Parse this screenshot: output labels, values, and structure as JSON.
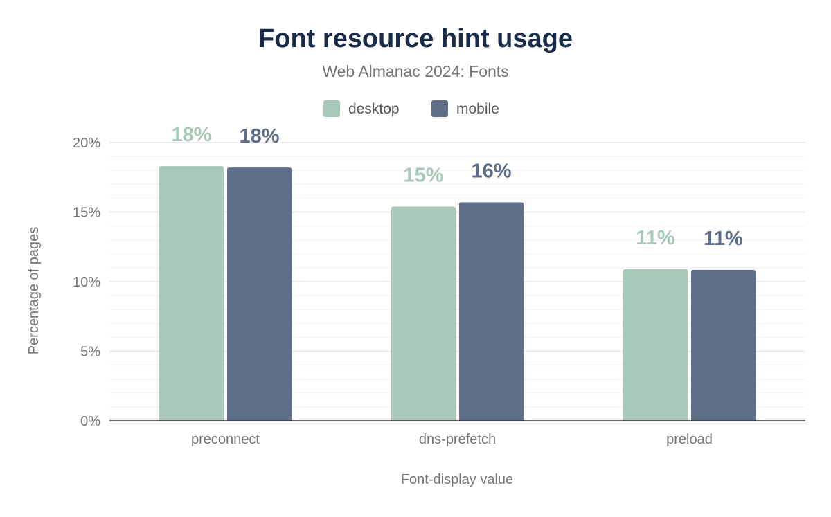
{
  "chart_data": {
    "type": "bar",
    "title": "Font resource hint usage",
    "subtitle": "Web Almanac 2024: Fonts",
    "xlabel": "Font-display value",
    "ylabel": "Percentage of pages",
    "categories": [
      "preconnect",
      "dns-prefetch",
      "preload"
    ],
    "series": [
      {
        "name": "desktop",
        "color": "#a8c9b8",
        "values": [
          18.3,
          15.4,
          10.9
        ],
        "labels": [
          "18%",
          "15%",
          "11%"
        ]
      },
      {
        "name": "mobile",
        "color": "#5f6e89",
        "values": [
          18.2,
          15.7,
          10.85
        ],
        "labels": [
          "18%",
          "16%",
          "11%"
        ]
      }
    ],
    "ylim": [
      0,
      20
    ],
    "yticks": [
      0,
      5,
      10,
      15,
      20
    ],
    "ytick_labels": [
      "0%",
      "5%",
      "10%",
      "15%",
      "20%"
    ],
    "grid": true,
    "legend": "top-center"
  }
}
